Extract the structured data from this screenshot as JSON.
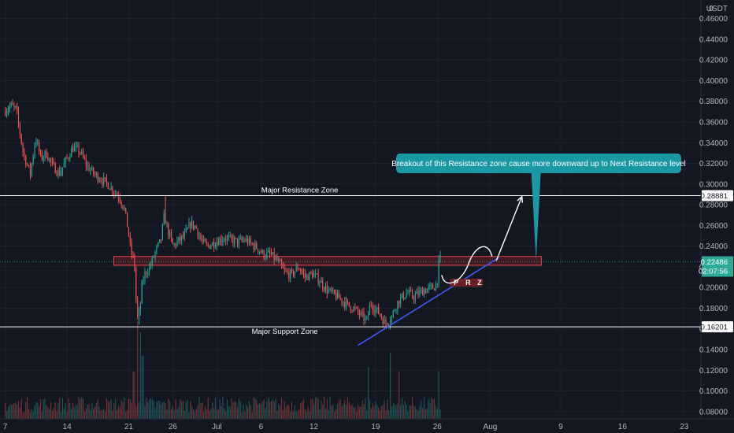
{
  "chart_data": {
    "type": "candlestick",
    "currency": "USDT",
    "y_axis": {
      "ticks": [
        0.46,
        0.44,
        0.42,
        0.4,
        0.38,
        0.36,
        0.34,
        0.32,
        0.3,
        0.28,
        0.26,
        0.24,
        0.22,
        0.2,
        0.18,
        0.16,
        0.14,
        0.12,
        0.1,
        0.08
      ],
      "tick_labels": [
        "0.46000",
        "0.44000",
        "0.42000",
        "0.40000",
        "0.38000",
        "0.36000",
        "0.34000",
        "0.32000",
        "0.30000",
        "0.28000",
        "0.26000",
        "0.24000",
        "0.22000",
        "0.20000",
        "0.18000",
        "0.16000",
        "0.14000",
        "0.12000",
        "0.10000",
        "0.08000"
      ],
      "range": [
        0.073,
        0.478
      ]
    },
    "x_axis": {
      "day_start_label": "7",
      "ticks": [
        {
          "day": 0,
          "label": "7"
        },
        {
          "day": 7,
          "label": "14"
        },
        {
          "day": 14,
          "label": "21"
        },
        {
          "day": 19,
          "label": "26"
        },
        {
          "day": 24,
          "label": "Jul"
        },
        {
          "day": 29,
          "label": "6"
        },
        {
          "day": 35,
          "label": "12"
        },
        {
          "day": 42,
          "label": "19"
        },
        {
          "day": 49,
          "label": "26"
        },
        {
          "day": 55,
          "label": "Aug"
        },
        {
          "day": 63,
          "label": "9"
        },
        {
          "day": 70,
          "label": "16"
        },
        {
          "day": 77,
          "label": "23"
        }
      ],
      "range": [
        -0.6,
        78.9
      ]
    },
    "price_keypoints": [
      [
        0,
        0.37
      ],
      [
        0.8,
        0.376
      ],
      [
        1.4,
        0.372
      ],
      [
        2.2,
        0.33
      ],
      [
        3.0,
        0.31
      ],
      [
        3.6,
        0.345
      ],
      [
        4.2,
        0.325
      ],
      [
        4.8,
        0.33
      ],
      [
        5.5,
        0.318
      ],
      [
        6.3,
        0.31
      ],
      [
        7.0,
        0.322
      ],
      [
        7.8,
        0.335
      ],
      [
        8.6,
        0.332
      ],
      [
        9.4,
        0.318
      ],
      [
        10.2,
        0.31
      ],
      [
        11.0,
        0.305
      ],
      [
        11.8,
        0.3
      ],
      [
        12.6,
        0.292
      ],
      [
        13.1,
        0.288
      ],
      [
        13.7,
        0.275
      ],
      [
        14.1,
        0.255
      ],
      [
        14.4,
        0.235
      ],
      [
        14.8,
        0.225
      ],
      [
        15.1,
        0.17
      ],
      [
        15.4,
        0.175
      ],
      [
        15.7,
        0.205
      ],
      [
        16.1,
        0.215
      ],
      [
        16.6,
        0.22
      ],
      [
        17.2,
        0.235
      ],
      [
        17.8,
        0.245
      ],
      [
        18.2,
        0.27
      ],
      [
        18.6,
        0.255
      ],
      [
        19.2,
        0.24
      ],
      [
        19.8,
        0.245
      ],
      [
        20.5,
        0.25
      ],
      [
        21.2,
        0.262
      ],
      [
        21.8,
        0.258
      ],
      [
        22.4,
        0.245
      ],
      [
        23.0,
        0.24
      ],
      [
        23.6,
        0.242
      ],
      [
        24.2,
        0.245
      ],
      [
        25.0,
        0.248
      ],
      [
        25.8,
        0.246
      ],
      [
        26.6,
        0.244
      ],
      [
        27.4,
        0.246
      ],
      [
        28.2,
        0.241
      ],
      [
        28.8,
        0.238
      ],
      [
        29.4,
        0.232
      ],
      [
        30.2,
        0.232
      ],
      [
        31.0,
        0.226
      ],
      [
        31.8,
        0.215
      ],
      [
        32.6,
        0.212
      ],
      [
        33.4,
        0.22
      ],
      [
        34.2,
        0.21
      ],
      [
        35.0,
        0.213
      ],
      [
        35.8,
        0.207
      ],
      [
        36.6,
        0.198
      ],
      [
        37.4,
        0.193
      ],
      [
        38.2,
        0.189
      ],
      [
        39.0,
        0.183
      ],
      [
        39.8,
        0.179
      ],
      [
        40.6,
        0.172
      ],
      [
        41.2,
        0.168
      ],
      [
        41.6,
        0.186
      ],
      [
        42.0,
        0.18
      ],
      [
        42.6,
        0.175
      ],
      [
        43.2,
        0.166
      ],
      [
        43.6,
        0.167
      ],
      [
        44.0,
        0.172
      ],
      [
        44.6,
        0.185
      ],
      [
        45.2,
        0.191
      ],
      [
        45.8,
        0.195
      ],
      [
        46.4,
        0.191
      ],
      [
        47.0,
        0.194
      ],
      [
        47.6,
        0.197
      ],
      [
        48.2,
        0.199
      ],
      [
        48.7,
        0.2
      ],
      [
        49.1,
        0.203
      ],
      [
        49.4,
        0.228
      ]
    ],
    "volume_spikes": [
      {
        "day": 15.0,
        "value": 0.62,
        "color": "red"
      },
      {
        "day": 15.3,
        "value": 0.55,
        "color": "red"
      },
      {
        "day": 15.6,
        "value": 0.4,
        "color": "green"
      },
      {
        "day": 14.6,
        "value": 0.3,
        "color": "red"
      },
      {
        "day": 44.7,
        "value": 0.3,
        "color": "green"
      },
      {
        "day": 49.2,
        "value": 0.3,
        "color": "green"
      },
      {
        "day": 43.7,
        "value": 0.42,
        "color": "red"
      },
      {
        "day": 41.2,
        "value": 0.33,
        "color": "green"
      }
    ],
    "levels": {
      "major_resistance": 0.28881,
      "major_support": 0.16201,
      "resistance_zone_top": 0.23,
      "resistance_zone_bottom": 0.2215,
      "current_price": 0.22486
    },
    "zone_span_days": {
      "start": 12.3,
      "end": 60.8
    },
    "trendline": {
      "from": [
        40.0,
        0.144
      ],
      "to": [
        56.0,
        0.229
      ]
    },
    "projection": {
      "curve": [
        [
          49.5,
          0.212
        ],
        [
          52.5,
          0.226
        ],
        [
          55.2,
          0.23
        ]
      ],
      "arrow": [
        [
          55.7,
          0.226
        ],
        [
          58.6,
          0.288
        ]
      ]
    },
    "callout_anchor": {
      "day": 60.2,
      "price": 0.226
    },
    "prz_anchor": {
      "day": 50.6,
      "price": 0.2047
    }
  },
  "labels": {
    "currency": "USDT",
    "major_resistance_label": "Major Resistance Zone",
    "major_support_label": "Major Support Zone",
    "callout_text": "Breakout of this Resistance zone cause more downward up to Next Resistance level",
    "prz_letters": [
      "P",
      "R",
      "Z"
    ],
    "resistance_price_tag": "0.28881",
    "support_price_tag": "0.16201",
    "current_price_tag": "0.22486",
    "countdown": "02:07:56"
  },
  "colors": {
    "background": "#131722",
    "bull": "#26a69a",
    "bear": "#ef5350",
    "zone_fill": "#6b1c22",
    "zone_border": "#e84848",
    "trendline": "#3d5afe",
    "callout": "#1a98a6",
    "current_tag": "#2bab97"
  }
}
